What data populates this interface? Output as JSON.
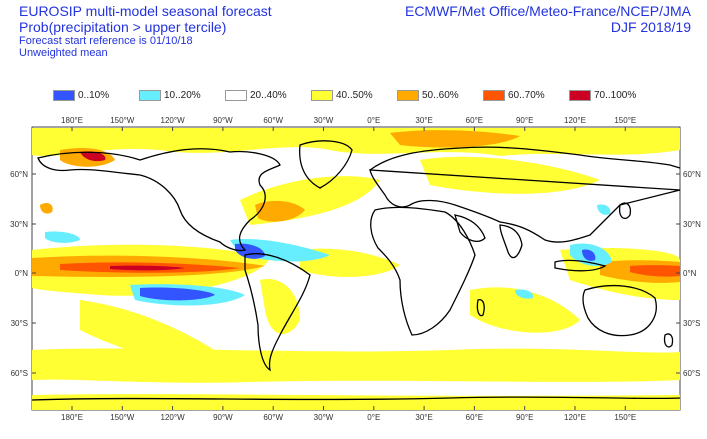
{
  "header": {
    "title_line1": "EUROSIP multi-model seasonal forecast",
    "title_line2": "Prob(precipitation > upper tercile)",
    "forecast_start": "Forecast start reference is 01/10/18",
    "weighting": "Unweighted mean",
    "centres": "ECMWF/Met Office/Meteo-France/NCEP/JMA",
    "season": "DJF 2018/19"
  },
  "legend": [
    {
      "label": "0..10%",
      "color": "#3355ff"
    },
    {
      "label": "10..20%",
      "color": "#66eeff"
    },
    {
      "label": "20..40%",
      "color": "#ffffff"
    },
    {
      "label": "40..50%",
      "color": "#ffff33"
    },
    {
      "label": "50..60%",
      "color": "#ffaa00"
    },
    {
      "label": "60..70%",
      "color": "#ff5500"
    },
    {
      "label": "70..100%",
      "color": "#cc0022"
    }
  ],
  "axes": {
    "lon_ticks_top": [
      "180°E",
      "150°W",
      "120°W",
      "90°W",
      "60°W",
      "30°W",
      "0°E",
      "30°E",
      "60°E",
      "90°E",
      "120°E",
      "150°E"
    ],
    "lon_ticks_bottom": [
      "180°E",
      "150°W",
      "120°W",
      "90°W",
      "60°W",
      "30°W",
      "0°E",
      "30°E",
      "60°E",
      "90°E",
      "120°E",
      "150°E"
    ],
    "lat_ticks_left": [
      "60°N",
      "30°N",
      "0°N",
      "30°S",
      "60°S"
    ],
    "lat_ticks_right": [
      "60°N",
      "30°N",
      "0°N",
      "30°S",
      "60°S"
    ]
  }
}
